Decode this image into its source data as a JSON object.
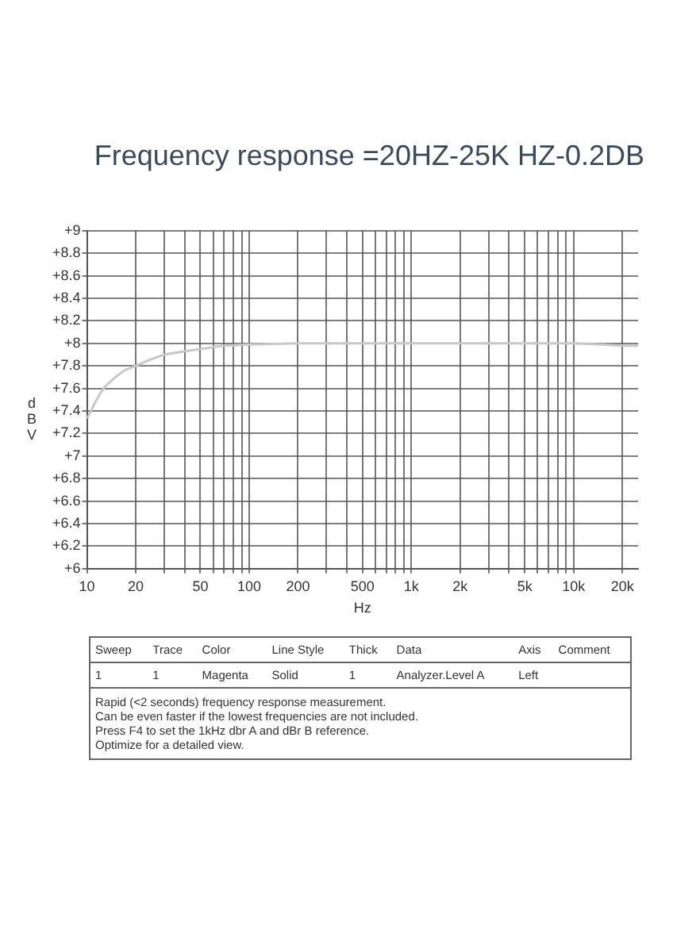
{
  "chart_data": {
    "type": "line",
    "title": "Frequency response =20HZ-25K HZ-0.2DB",
    "xlabel": "Hz",
    "ylabel": "dBV",
    "x": [
      10,
      11,
      12,
      13,
      15,
      17,
      20,
      25,
      30,
      40,
      50,
      70,
      100,
      200,
      500,
      1000,
      2000,
      5000,
      10000,
      15000,
      20000,
      25000
    ],
    "series": [
      {
        "color": "#c8c8c8",
        "values": [
          7.33,
          7.45,
          7.55,
          7.62,
          7.7,
          7.76,
          7.8,
          7.86,
          7.9,
          7.93,
          7.95,
          7.98,
          7.99,
          8.0,
          8.0,
          8.0,
          8.0,
          8.0,
          8.0,
          7.99,
          7.98,
          7.98
        ]
      }
    ],
    "log": "x",
    "grid": true,
    "marker": "none",
    "line_style": "solid",
    "xlim": [
      10,
      25000
    ],
    "xticks": [
      10,
      20,
      {
        "value": 30,
        "label": null
      },
      {
        "value": 40,
        "label": null
      },
      50,
      {
        "value": 60,
        "label": null
      },
      {
        "value": 70,
        "label": null
      },
      {
        "value": 80,
        "label": null
      },
      {
        "value": 90,
        "label": null
      },
      100,
      200,
      {
        "value": 300,
        "label": null
      },
      {
        "value": 400,
        "label": null
      },
      500,
      {
        "value": 600,
        "label": null
      },
      {
        "value": 700,
        "label": null
      },
      {
        "value": 800,
        "label": null
      },
      {
        "value": 900,
        "label": null
      },
      {
        "value": 1000,
        "label": "1k"
      },
      {
        "value": 2000,
        "label": "2k"
      },
      {
        "value": 3000,
        "label": null
      },
      {
        "value": 4000,
        "label": null
      },
      {
        "value": 5000,
        "label": "5k"
      },
      {
        "value": 6000,
        "label": null
      },
      {
        "value": 7000,
        "label": null
      },
      {
        "value": 8000,
        "label": null
      },
      {
        "value": 9000,
        "label": null
      },
      {
        "value": 10000,
        "label": "10k"
      },
      {
        "value": 20000,
        "label": "20k"
      }
    ],
    "ylim": [
      6,
      9
    ],
    "yticks": [
      {
        "value": 6,
        "label": "+6"
      },
      {
        "value": 6.2,
        "label": "+6.2"
      },
      {
        "value": 6.4,
        "label": "+6.4"
      },
      {
        "value": 6.6,
        "label": "+6.6"
      },
      {
        "value": 6.8,
        "label": "+6.8"
      },
      {
        "value": 7,
        "label": "+7"
      },
      {
        "value": 7.2,
        "label": "+7.2"
      },
      {
        "value": 7.4,
        "label": "+7.4"
      },
      {
        "value": 7.6,
        "label": "+7.6"
      },
      {
        "value": 7.8,
        "label": "+7.8"
      },
      {
        "value": 8,
        "label": "+8"
      },
      {
        "value": 8.2,
        "label": "+8.2"
      },
      {
        "value": 8.4,
        "label": "+8.4"
      },
      {
        "value": 8.6,
        "label": "+8.6"
      },
      {
        "value": 8.8,
        "label": "+8.8"
      },
      {
        "value": 9,
        "label": "+9"
      }
    ],
    "annotations": [
      "Sweep\tTrace\tColor\tLine Style\tThick\tData\tAxis\tComment",
      "1\t1\tMagenta\tSolid\t1\tAnalyzer.Level A\tLeft\t",
      "Rapid (<2 seconds) frequency response measurement.",
      "Can be even faster if the lowest frequencies are not included.",
      "Press F4 to set the 1kHz dbr A and dBr B reference.",
      "Optimize for a detailed view."
    ]
  }
}
